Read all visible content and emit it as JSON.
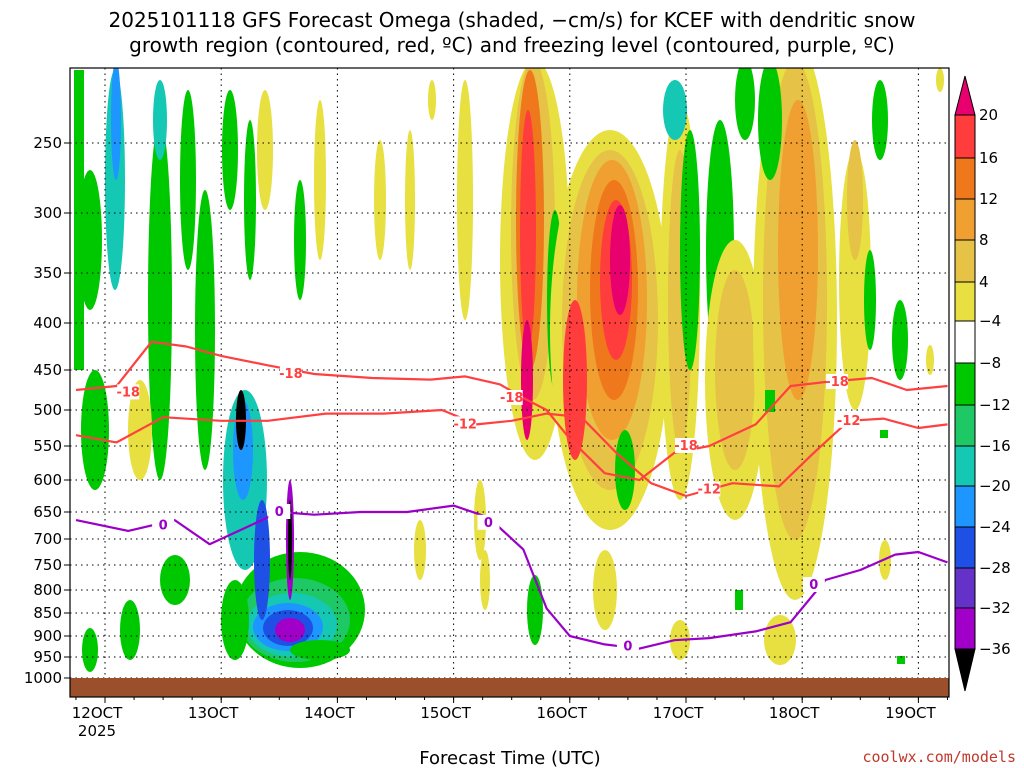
{
  "chart_data": {
    "type": "heatmap",
    "title_line1": "2025101118 GFS Forecast Omega (shaded, −cm/s) for KCEF with dendritic snow",
    "title_line2": "growth region (contoured, red, ºC) and freezing level (contoured, purple, ºC)",
    "xlabel": "Forecast Time (UTC)",
    "ylabel": "",
    "x_ticks": [
      "12OCT",
      "13OCT",
      "14OCT",
      "15OCT",
      "16OCT",
      "17OCT",
      "18OCT",
      "19OCT"
    ],
    "x_start_label": "2025",
    "y_ticks": [
      "250",
      "300",
      "350",
      "400",
      "450",
      "500",
      "550",
      "600",
      "650",
      "700",
      "750",
      "800",
      "850",
      "900",
      "950",
      "1000"
    ],
    "y_range_hPa": [
      1020,
      200
    ],
    "x_range_days": [
      11.75,
      19.25
    ],
    "colorbar_labels": [
      "20",
      "16",
      "12",
      "8",
      "4",
      "−4",
      "−8",
      "−12",
      "−16",
      "−20",
      "−24",
      "−28",
      "−32",
      "−36"
    ],
    "colorbar_colors": [
      "#e8006e",
      "#ff3d3d",
      "#f0781c",
      "#f0a030",
      "#e6c246",
      "#e8e040",
      "#ffffff",
      "#00c800",
      "#1ec864",
      "#14c8b4",
      "#1e96ff",
      "#1e50e6",
      "#6432c8",
      "#a000c8",
      "#aaaaaa",
      "#000000"
    ],
    "series": [
      {
        "name": "-18 °C isotherm",
        "color": "#ff4040",
        "label": "-18",
        "x": [
          11.75,
          12.1,
          12.4,
          12.7,
          13.0,
          13.4,
          13.8,
          14.3,
          14.8,
          15.1,
          15.4,
          15.6,
          15.8,
          16.0,
          16.3,
          16.6,
          16.9,
          17.2,
          17.6,
          17.9,
          18.2,
          18.6,
          18.9,
          19.25
        ],
        "p": [
          475,
          470,
          420,
          425,
          435,
          445,
          455,
          460,
          462,
          458,
          468,
          485,
          500,
          540,
          590,
          600,
          560,
          550,
          520,
          470,
          465,
          460,
          475,
          470
        ],
        "labels_at": [
          [
            12.2,
            478
          ],
          [
            13.6,
            455
          ],
          [
            15.5,
            485
          ],
          [
            17.0,
            550
          ],
          [
            18.3,
            465
          ]
        ]
      },
      {
        "name": "-12 °C isotherm",
        "color": "#ff4040",
        "label": "-12",
        "x": [
          11.75,
          12.1,
          12.5,
          13.0,
          13.4,
          13.9,
          14.4,
          14.9,
          15.2,
          15.5,
          15.8,
          16.1,
          16.4,
          16.7,
          17.0,
          17.4,
          17.8,
          18.1,
          18.4,
          18.7,
          19.0,
          19.25
        ],
        "p": [
          535,
          545,
          510,
          515,
          515,
          505,
          505,
          500,
          520,
          515,
          505,
          510,
          560,
          605,
          625,
          605,
          610,
          560,
          515,
          512,
          525,
          520
        ],
        "labels_at": [
          [
            15.1,
            520
          ],
          [
            17.2,
            615
          ],
          [
            18.4,
            515
          ]
        ]
      },
      {
        "name": "0 °C freezing level",
        "color": "#9a00c8",
        "label": "0",
        "x": [
          11.75,
          12.2,
          12.6,
          12.9,
          13.2,
          13.5,
          13.8,
          14.2,
          14.6,
          15.0,
          15.3,
          15.6,
          15.8,
          16.0,
          16.3,
          16.6,
          16.9,
          17.2,
          17.6,
          17.9,
          18.2,
          18.5,
          18.8,
          19.0,
          19.25
        ],
        "p": [
          665,
          685,
          665,
          710,
          680,
          650,
          655,
          650,
          650,
          640,
          660,
          720,
          840,
          900,
          920,
          930,
          910,
          905,
          890,
          870,
          780,
          760,
          730,
          725,
          745
        ],
        "labels_at": [
          [
            12.5,
            675
          ],
          [
            13.5,
            650
          ],
          [
            15.3,
            670
          ],
          [
            16.5,
            925
          ],
          [
            18.1,
            790
          ]
        ]
      }
    ]
  }
}
